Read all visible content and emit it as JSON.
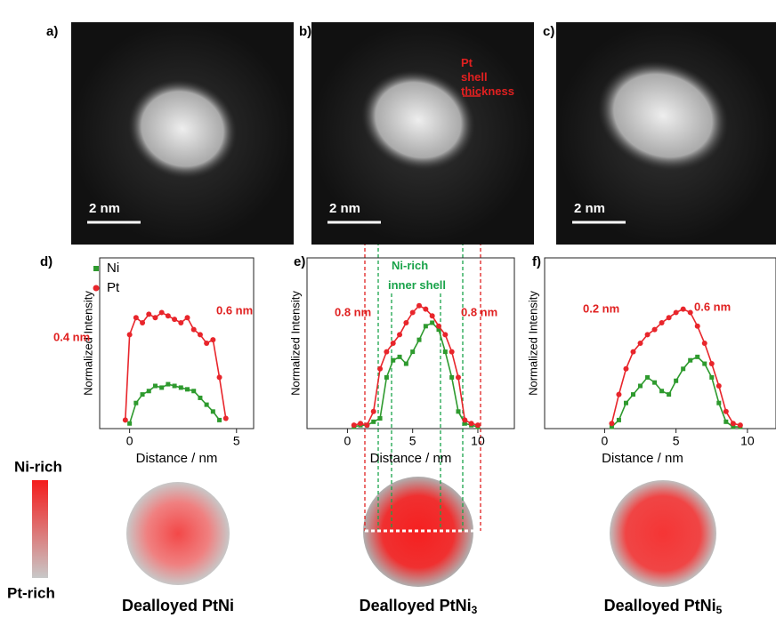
{
  "images": [
    {
      "panel": "a)",
      "scale": "2 nm"
    },
    {
      "panel": "b)",
      "scale": "2 nm",
      "annotation": "Pt shell thickness"
    },
    {
      "panel": "c)",
      "scale": "2 nm"
    }
  ],
  "chart_data": [
    {
      "type": "line",
      "panel": "d)",
      "xlabel": "Distance / nm",
      "ylabel": "Normalized Intensity",
      "xlim": [
        -1.4,
        5.8
      ],
      "ylim": [
        0,
        1
      ],
      "xticks": [
        0,
        5
      ],
      "legend": "upper left",
      "annotations": [
        "0.4 nm",
        "0.6 nm"
      ],
      "series": [
        {
          "name": "Ni",
          "color": "#2e9a2e",
          "x": [
            0,
            0.3,
            0.6,
            0.9,
            1.2,
            1.5,
            1.8,
            2.1,
            2.4,
            2.7,
            3.0,
            3.3,
            3.6,
            3.9,
            4.2
          ],
          "values": [
            0.03,
            0.15,
            0.2,
            0.22,
            0.25,
            0.24,
            0.26,
            0.25,
            0.24,
            0.23,
            0.22,
            0.18,
            0.14,
            0.1,
            0.05
          ]
        },
        {
          "name": "Pt",
          "color": "#e8252b",
          "x": [
            -0.2,
            0,
            0.3,
            0.6,
            0.9,
            1.2,
            1.5,
            1.8,
            2.1,
            2.4,
            2.7,
            3.0,
            3.3,
            3.6,
            3.9,
            4.2,
            4.5
          ],
          "values": [
            0.05,
            0.55,
            0.65,
            0.62,
            0.67,
            0.65,
            0.68,
            0.66,
            0.64,
            0.62,
            0.65,
            0.58,
            0.55,
            0.5,
            0.52,
            0.3,
            0.06
          ]
        }
      ]
    },
    {
      "type": "line",
      "panel": "e)",
      "xlabel": "Distance / nm",
      "ylabel": "Normalized Intensity",
      "xlim": [
        -3.1,
        12.8
      ],
      "ylim": [
        0,
        1
      ],
      "xticks": [
        0,
        5,
        10
      ],
      "annotations": [
        "0.8 nm",
        "0.8 nm",
        "Ni-rich inner shell"
      ],
      "series": [
        {
          "color": "#2e9a2e",
          "x": [
            0.5,
            1,
            1.5,
            2,
            2.5,
            3,
            3.5,
            4,
            4.5,
            5,
            5.5,
            6,
            6.5,
            7,
            7.5,
            8,
            8.5,
            9,
            9.5,
            10
          ],
          "values": [
            0.01,
            0.02,
            0.02,
            0.04,
            0.06,
            0.3,
            0.4,
            0.42,
            0.38,
            0.45,
            0.52,
            0.6,
            0.62,
            0.58,
            0.45,
            0.3,
            0.1,
            0.03,
            0.02,
            0.01
          ]
        },
        {
          "color": "#e8252b",
          "x": [
            0.5,
            1,
            1.5,
            2,
            2.5,
            3,
            3.5,
            4,
            4.5,
            5,
            5.5,
            6,
            6.5,
            7,
            7.5,
            8,
            8.5,
            9,
            9.5,
            10
          ],
          "values": [
            0.02,
            0.03,
            0.02,
            0.1,
            0.35,
            0.45,
            0.5,
            0.55,
            0.62,
            0.68,
            0.72,
            0.7,
            0.66,
            0.6,
            0.55,
            0.45,
            0.3,
            0.05,
            0.03,
            0.02
          ]
        }
      ]
    },
    {
      "type": "line",
      "panel": "f)",
      "xlabel": "Distance / nm",
      "ylabel": "Normalized Intensity",
      "xlim": [
        -4.2,
        12
      ],
      "ylim": [
        0,
        1
      ],
      "xticks": [
        0,
        5,
        10
      ],
      "annotations": [
        "0.2 nm",
        "0.6 nm"
      ],
      "series": [
        {
          "color": "#2e9a2e",
          "x": [
            0.5,
            1,
            1.5,
            2,
            2.5,
            3,
            3.5,
            4,
            4.5,
            5,
            5.5,
            6,
            6.5,
            7,
            7.5,
            8,
            8.5,
            9,
            9.5
          ],
          "values": [
            0.01,
            0.05,
            0.15,
            0.2,
            0.25,
            0.3,
            0.27,
            0.22,
            0.2,
            0.28,
            0.35,
            0.4,
            0.42,
            0.38,
            0.3,
            0.15,
            0.04,
            0.01,
            0.01
          ]
        },
        {
          "color": "#e8252b",
          "x": [
            0.5,
            1,
            1.5,
            2,
            2.5,
            3,
            3.5,
            4,
            4.5,
            5,
            5.5,
            6,
            6.5,
            7,
            7.5,
            8,
            8.5,
            9,
            9.5
          ],
          "values": [
            0.03,
            0.2,
            0.35,
            0.45,
            0.5,
            0.55,
            0.58,
            0.62,
            0.65,
            0.68,
            0.7,
            0.68,
            0.6,
            0.5,
            0.38,
            0.25,
            0.1,
            0.03,
            0.02
          ]
        }
      ]
    }
  ],
  "schematic": {
    "scale_top": "Ni-rich",
    "scale_bottom": "Pt-rich",
    "labels": [
      {
        "text": "Dealloyed PtNi"
      },
      {
        "text": "Dealloyed PtNi",
        "subscript": "3"
      },
      {
        "text": "Dealloyed PtNi",
        "subscript": "5"
      }
    ]
  }
}
